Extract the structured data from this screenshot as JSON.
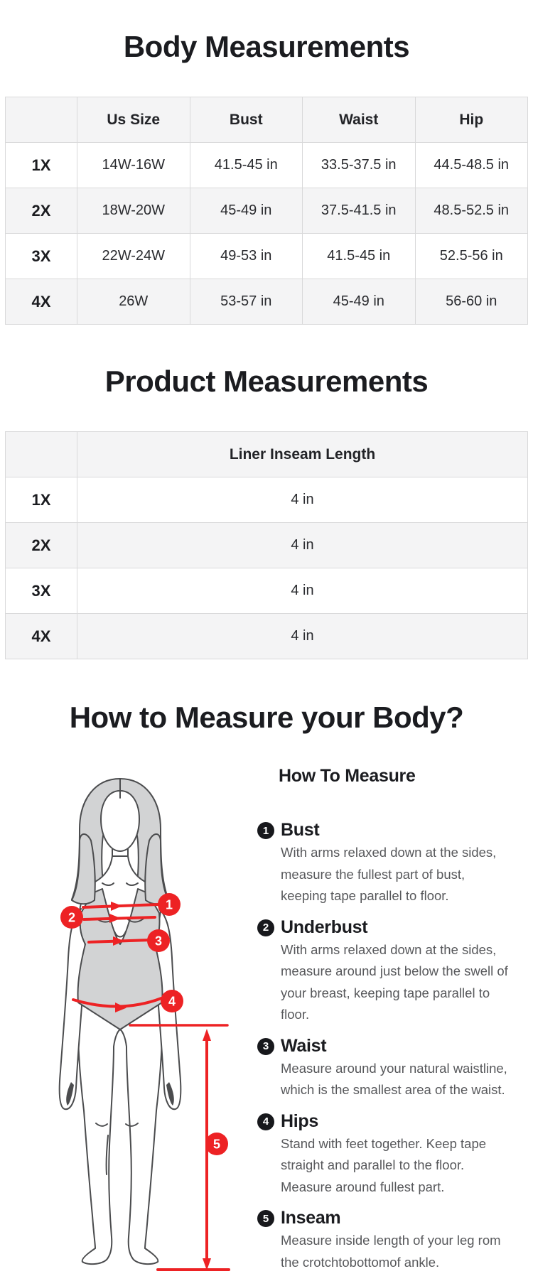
{
  "body_section": {
    "title": "Body Measurements",
    "table": {
      "columns": [
        "",
        "Us Size",
        "Bust",
        "Waist",
        "Hip"
      ],
      "rows": [
        {
          "label": "1X",
          "cells": [
            "14W-16W",
            "41.5-45 in",
            "33.5-37.5 in",
            "44.5-48.5 in"
          ]
        },
        {
          "label": "2X",
          "cells": [
            "18W-20W",
            "45-49 in",
            "37.5-41.5 in",
            "48.5-52.5 in"
          ]
        },
        {
          "label": "3X",
          "cells": [
            "22W-24W",
            "49-53 in",
            "41.5-45 in",
            "52.5-56 in"
          ]
        },
        {
          "label": "4X",
          "cells": [
            "26W",
            "53-57 in",
            "45-49 in",
            "56-60 in"
          ]
        }
      ]
    }
  },
  "product_section": {
    "title": "Product Measurements",
    "table": {
      "columns": [
        "",
        "Liner Inseam Length"
      ],
      "rows": [
        {
          "label": "1X",
          "cells": [
            "4 in"
          ]
        },
        {
          "label": "2X",
          "cells": [
            "4 in"
          ]
        },
        {
          "label": "3X",
          "cells": [
            "4 in"
          ]
        },
        {
          "label": "4X",
          "cells": [
            "4 in"
          ]
        }
      ]
    }
  },
  "how_section": {
    "title": "How to Measure your Body?",
    "list_title": "How To Measure",
    "items": [
      {
        "number": "1",
        "name": "Bust",
        "description": "With arms relaxed down at the sides, measure the fullest part of bust, keeping tape parallel to floor."
      },
      {
        "number": "2",
        "name": "Underbust",
        "description": "With arms relaxed down at the sides, measure around just below the swell of your breast, keeping tape parallel to floor."
      },
      {
        "number": "3",
        "name": "Waist",
        "description": "Measure around your natural waistline, which is the smallest area of the waist."
      },
      {
        "number": "4",
        "name": "Hips",
        "description": "Stand with feet together. Keep tape straight and parallel to the floor. Measure around fullest part."
      },
      {
        "number": "5",
        "name": "Inseam",
        "description": "Measure inside length of your leg rom the crotchtobottomof ankle."
      }
    ],
    "figure": {
      "badges": [
        "1",
        "2",
        "3",
        "4",
        "5"
      ]
    }
  },
  "colors": {
    "accent_red": "#ed2224",
    "bullet_black": "#17181c",
    "row_alt_gray": "#f4f4f5",
    "table_border": "#d9d9da",
    "heading_text": "#1b1c20",
    "body_text": "#57585b",
    "figure_gray": "#d2d3d4"
  }
}
